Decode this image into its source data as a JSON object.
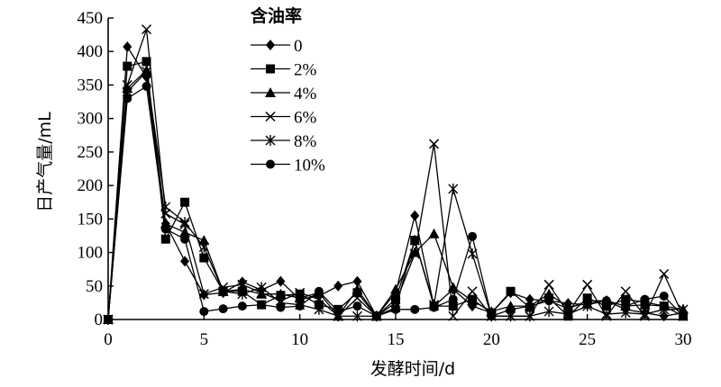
{
  "chart_data": {
    "type": "line",
    "xlabel": "发酵时间/d",
    "ylabel": "日产气量/mL",
    "xlim": [
      0,
      30
    ],
    "ylim": [
      0,
      450
    ],
    "xticks": [
      0,
      5,
      10,
      15,
      20,
      25,
      30
    ],
    "yticks": [
      0,
      50,
      100,
      150,
      200,
      250,
      300,
      350,
      400,
      450
    ],
    "grid": false,
    "legend_title": "含油率",
    "legend_position": "top-center",
    "x": [
      0,
      1,
      2,
      3,
      4,
      5,
      6,
      7,
      8,
      9,
      10,
      11,
      12,
      13,
      14,
      15,
      16,
      17,
      18,
      19,
      20,
      21,
      22,
      23,
      24,
      25,
      26,
      27,
      28,
      29,
      30
    ],
    "series": [
      {
        "name": "0",
        "marker": "diamond",
        "values": [
          0,
          407,
          362,
          143,
          87,
          37,
          40,
          56,
          44,
          57,
          30,
          35,
          50,
          57,
          5,
          40,
          155,
          20,
          45,
          20,
          10,
          40,
          30,
          28,
          24,
          22,
          28,
          15,
          10,
          5,
          10
        ]
      },
      {
        "name": "2%",
        "marker": "square",
        "values": [
          0,
          378,
          385,
          120,
          175,
          92,
          42,
          42,
          22,
          36,
          38,
          22,
          15,
          40,
          5,
          30,
          118,
          20,
          20,
          30,
          10,
          42,
          18,
          32,
          5,
          32,
          20,
          30,
          26,
          20,
          5
        ]
      },
      {
        "name": "4%",
        "marker": "triangle",
        "values": [
          0,
          345,
          372,
          143,
          130,
          118,
          42,
          45,
          38,
          38,
          32,
          40,
          5,
          45,
          5,
          45,
          100,
          128,
          48,
          28,
          12,
          20,
          20,
          38,
          18,
          24,
          28,
          20,
          22,
          20,
          15
        ]
      },
      {
        "name": "6%",
        "marker": "x",
        "values": [
          0,
          350,
          433,
          158,
          142,
          38,
          48,
          52,
          40,
          28,
          40,
          30,
          5,
          32,
          5,
          25,
          98,
          262,
          5,
          42,
          5,
          5,
          5,
          52,
          10,
          52,
          5,
          42,
          5,
          68,
          5
        ]
      },
      {
        "name": "8%",
        "marker": "star",
        "values": [
          0,
          340,
          370,
          168,
          145,
          108,
          42,
          38,
          48,
          25,
          22,
          15,
          5,
          5,
          5,
          18,
          118,
          22,
          195,
          98,
          5,
          5,
          5,
          12,
          8,
          20,
          8,
          10,
          8,
          15,
          15
        ]
      },
      {
        "name": "10%",
        "marker": "circle",
        "values": [
          0,
          330,
          348,
          135,
          120,
          12,
          16,
          20,
          22,
          18,
          20,
          42,
          12,
          20,
          5,
          15,
          15,
          18,
          30,
          124,
          5,
          15,
          20,
          28,
          16,
          28,
          28,
          20,
          30,
          35,
          5
        ]
      }
    ]
  }
}
